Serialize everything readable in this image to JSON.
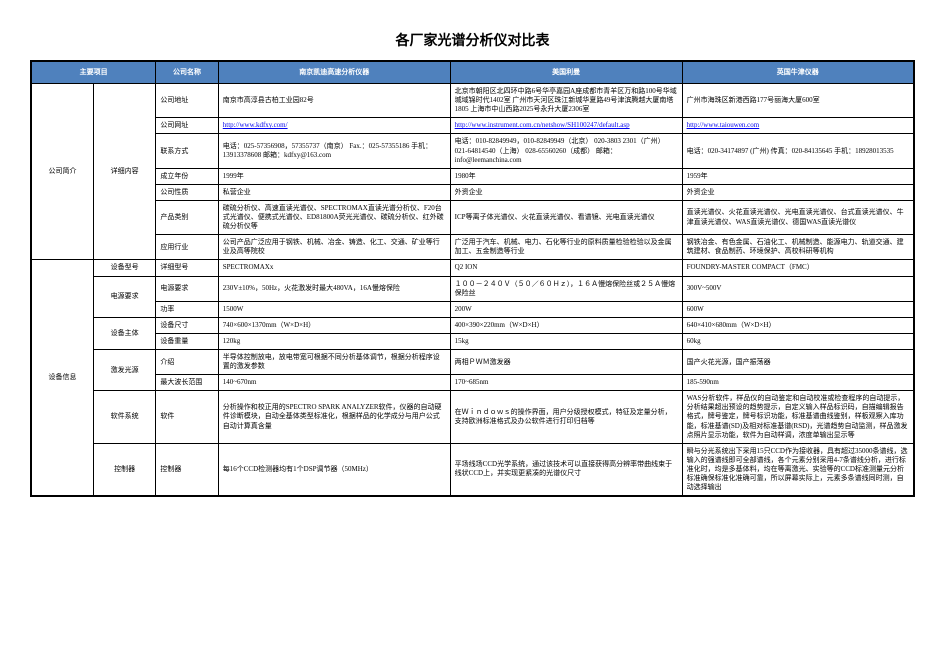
{
  "title": "各厂家光谱分析仪对比表",
  "header": {
    "col_main": "主要项目",
    "col_company": "公司名称",
    "vendor1": "南京凯迪高速分析仪器",
    "vendor2": "美国利曼",
    "vendor3": "英国牛津仪器"
  },
  "company_section": {
    "group": "公司简介",
    "detail_group": "详细内容",
    "rows": {
      "address": {
        "label": "公司地址",
        "v1": "南京市高淳县古柏工业园82号",
        "v2": "北京市朝阳区北四环中路6号华亭嘉园A座成都市青羊区万和路100号华域城域锦时代1402室\n广州市天河区珠江新城华夏路49号津滨腾越大厦南塔1805\n上海市中山西路2025号永升大厦2306室",
        "v3": "广州市海珠区新港西路177号丽海大厦600室"
      },
      "website": {
        "label": "公司网址",
        "v1_link": "http://www.kdfxy.com/",
        "v2_link": "http://www.instrument.com.cn/netshow/SH100247/default.asp",
        "v3_link": "http://www.taiouwen.com"
      },
      "contact": {
        "label": "联系方式",
        "v1": "电话：025-57356908，57355737（南京）\nFax.：025-57355186\n手机：13913378608\n邮箱：kdfxy@163.com",
        "v2": "电话：010-82849949，010-82849949（北京）\n020-3803 2301（广州）\n021-64814540（上海）\n028-65560260（成都）\n邮箱：info@leemanchina.com",
        "v3": "电话：020-34174897 (广州)\n传真：020-84135645\n手机：18928013535"
      },
      "founded": {
        "label": "成立年份",
        "v1": "1999年",
        "v2": "1980年",
        "v3": "1959年"
      },
      "nature": {
        "label": "公司性质",
        "v1": "私营企业",
        "v2": "外资企业",
        "v3": "外资企业"
      },
      "products": {
        "label": "产品类别",
        "v1": "碳硫分析仪、高速直读光谱仪、SPECTROMAX直读光谱分析仪、F20台式光谱仪、便携式光谱仪、ED81800A荧光光谱仪、碳硫分析仪、红外碳硫分析仪等",
        "v2": "ICP等离子体光谱仪、火花直读光谱仪、看谱镜、光电直读光谱仪",
        "v3": "直读光谱仪、火花直读光谱仪、光电直读光谱仪、台式直读光谱仪、牛津直读光谱仪、WAS直读光谱仪、德国WAS直读光谱仪"
      },
      "industry": {
        "label": "应用行业",
        "v1": "公司产品广泛应用于钢铁、机械、冶金、铸造、化工、交通、矿业等行业及高等院校",
        "v2": "广泛用于汽车、机械、电力、石化等行业的原料质量检验检验以及金属加工、五金制造等行业",
        "v3": "钢铁冶金、有色金属、石油化工、机械制造、能源电力、轨道交通、建筑建材、食品制药、环境保护、高校科研等机构"
      }
    }
  },
  "equipment_section": {
    "group": "设备信息",
    "rows": {
      "model": {
        "group": "设备型号",
        "label": "详细型号",
        "v1": "SPECTROMAXx",
        "v2": "Q2 ION",
        "v3": "FOUNDRY-MASTER COMPACT（FMC）"
      },
      "power_req": {
        "group": "电源要求",
        "label": "电源要求",
        "v1": "230V±10%，50Hz，火花激发时最大480VA，16A慢熔保险",
        "v2": "１００－２４０Ｖ（５０／６０Ｈｚ），１６Ａ慢熔保险丝或２５Ａ慢熔保险丝",
        "v3": "300V~500V"
      },
      "power": {
        "label": "功率",
        "v1": "1500W",
        "v2": "200W",
        "v3": "600W"
      },
      "dimensions": {
        "group": "设备主体",
        "label": "设备尺寸",
        "v1": "740×600×1370mm（W×D×H）",
        "v2": "400×390×220mm（W×D×H）",
        "v3": "640×410×680mm（W×D×H）"
      },
      "weight": {
        "label": "设备重量",
        "v1": "120kg",
        "v2": "15kg",
        "v3": "60kg"
      },
      "excitation": {
        "group": "激发光源",
        "label": "介绍",
        "v1": "半导体控制放电，放电带宽可根据不同分析基体调节，根据分析程序设置的激发参数",
        "v2": "两相ＰＷＭ激发器",
        "v3": "国产火花光源，国产振荡器"
      },
      "wavelength": {
        "label": "最大波长范围",
        "v1": "140~670nm",
        "v2": "170~685nm",
        "v3": "185-590nm"
      },
      "software": {
        "group": "软件系统",
        "label": "软件",
        "v1": "分析操作和校正用的SPECTRO SPARK ANALYZER软件，仪器的自动硬件诊断模块，自动全基体类型标准化，根据样品的化学成分与用户公式自动计算真含量",
        "v2": "在Ｗｉｎｄｏｗｓ的操作界面，用户分级授权模式，特征及定量分析，支持欧洲标准格式及办公软件进行打印归档等",
        "v3": "WAS分析软件，样品仪的自动鉴定和自动校准或检查程序的自动提示，分析结果超出预设的趋势提示，自定义输入样品标识码，自描编辑报告格式，牌号鉴定，牌号标识功能，标准基谱曲线鉴别，样板观察入库功能，标准基谱(SD)及相对标准基谱(RSD)，光谱趋势自动监测，样品激发点照片显示功能，软件为自动样调，浓度单输出显示等"
      },
      "control": {
        "group": "控制器",
        "label": "控制器",
        "v1": "每16个CCD检测器均有1个DSP调节器（50MHz）",
        "v2": "平场线场CCD光学系统，通过该技术可以直接获得高分辨率带曲线束于线状CCD上，并实现更紧凑的光谱仪尺寸",
        "v3": "瞬与分光系统出下采用15只CCD作为接收器，具有超过35000条谱线，选输入的强谱线即可全部谱线，各个元素分别采用4-7条谱线分析，进行标准化时，均是多基体料，均在等离激光、实验等的CCD标准测量元分析标准确保标准化准确可靠，所以屏幕实际上，元素多条谱线同时测，自动选择输出"
      }
    }
  },
  "colors": {
    "header_bg": "#4f81bd",
    "header_fg": "#ffffff",
    "border": "#000000",
    "link": "#0000ee",
    "page_bg": "#ffffff"
  }
}
